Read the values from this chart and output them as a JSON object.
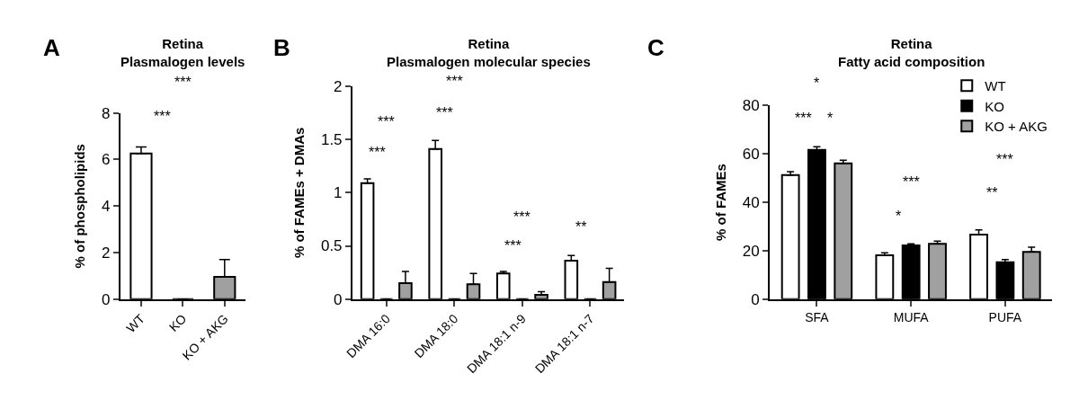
{
  "chart_data": [
    {
      "type": "bar",
      "title": "Retina\nPlasmalogen levels",
      "ylabel": "% of phospholipids",
      "categories": [
        "WT",
        "KO",
        "KO + AKG"
      ],
      "values": [
        6.26,
        0,
        0.96
      ],
      "errors": [
        0.28,
        null,
        0.74
      ],
      "colors": [
        "#ffffff",
        "#000000",
        "#a0a0a0"
      ],
      "ylim": [
        0,
        8
      ],
      "yticks": [
        0,
        2,
        4,
        6,
        8
      ],
      "annotations": [
        "A",
        "***",
        "***"
      ]
    },
    {
      "type": "bar",
      "title": "Retina\nPlasmalogen molecular species",
      "ylabel": "% of FAMEs + DMAs",
      "categories": [
        "DMA 16:0",
        "DMA 18:0",
        "DMA 18:1 n-9",
        "DMA 18:1 n-7"
      ],
      "ylim": [
        0,
        2
      ],
      "yticks": [
        0,
        0.5,
        1,
        1.5,
        2
      ],
      "series": [
        {
          "color": "#ffffff",
          "values": [
            1.09,
            1.41,
            0.24,
            0.36
          ],
          "errors": [
            0.04,
            0.08,
            0.02,
            0.05
          ]
        },
        {
          "color": "#000000",
          "values": [
            0,
            0,
            0,
            0
          ],
          "errors": [
            null,
            null,
            null,
            null
          ]
        },
        {
          "color": "#a0a0a0",
          "values": [
            0.15,
            0.14,
            0.04,
            0.16
          ],
          "errors": [
            0.11,
            0.1,
            0.03,
            0.13
          ]
        }
      ],
      "annotations": [
        "B",
        "***",
        "***",
        "***",
        "***",
        "***",
        "***",
        "**"
      ]
    },
    {
      "type": "bar",
      "title": "Retina\nFatty acid composition",
      "ylabel": "% of FAMEs",
      "categories": [
        "SFA",
        "MUFA",
        "PUFA"
      ],
      "ylim": [
        0,
        80
      ],
      "yticks": [
        0,
        20,
        40,
        60,
        80
      ],
      "legend": "top right",
      "series": [
        {
          "name": "WT",
          "color": "#ffffff",
          "values": [
            51.2,
            18.1,
            26.6
          ],
          "errors": [
            1.4,
            1.0,
            2.0
          ]
        },
        {
          "name": "KO",
          "color": "#000000",
          "values": [
            61.6,
            22.2,
            15.2
          ],
          "errors": [
            1.3,
            0.6,
            1.1
          ]
        },
        {
          "name": "KO + AKG",
          "color": "#a0a0a0",
          "values": [
            56.0,
            22.8,
            19.5
          ],
          "errors": [
            1.3,
            1.1,
            1.9
          ]
        }
      ],
      "annotations": [
        "C",
        "***",
        "*",
        "*",
        "*",
        "***",
        "**",
        "***"
      ]
    }
  ]
}
